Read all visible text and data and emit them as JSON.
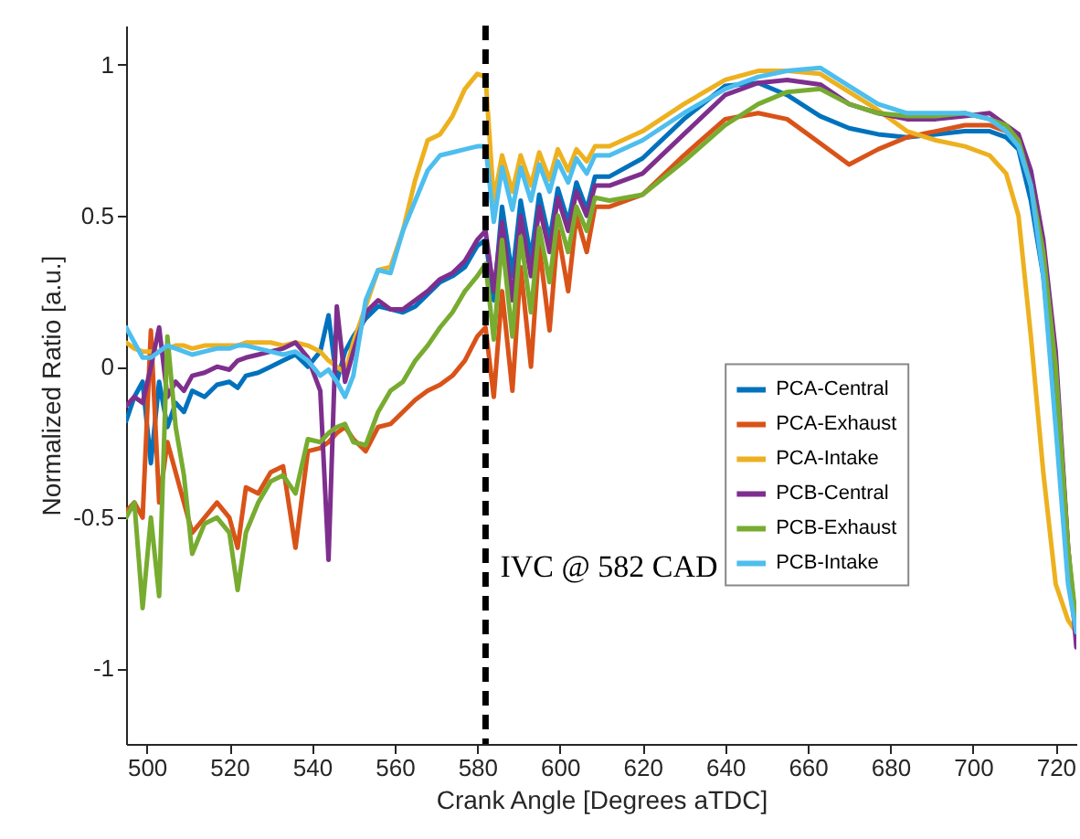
{
  "chart_data": {
    "type": "line",
    "xlabel": "Crank Angle [Degrees aTDC]",
    "ylabel": "Normalized Ratio [a.u.]",
    "xlim": [
      495,
      725
    ],
    "ylim": [
      -1.25,
      1.13
    ],
    "xticks": [
      500,
      520,
      540,
      560,
      580,
      600,
      620,
      640,
      660,
      680,
      700,
      720
    ],
    "yticks": [
      -1,
      -0.5,
      0,
      0.5,
      1
    ],
    "grid": false,
    "legend": "right",
    "line_style": "solid",
    "marker": "none",
    "ref_lines": [
      {
        "axis": "x",
        "value": 582,
        "label": "IVC @ 582 CAD",
        "color": "#000000",
        "line_style": "dashed"
      }
    ],
    "x": [
      495,
      497,
      499,
      501,
      503,
      505,
      507,
      509,
      511,
      514,
      517,
      520,
      522,
      524,
      527,
      530,
      533,
      536,
      539,
      542,
      544,
      546,
      548,
      550,
      553,
      556,
      559,
      562,
      565,
      568,
      571,
      574,
      577,
      580,
      582,
      584,
      586,
      588.5,
      590.5,
      593,
      595,
      597.5,
      599.5,
      602,
      604,
      606.5,
      608.5,
      612,
      620,
      630,
      640,
      648,
      655,
      663,
      670,
      677,
      684,
      691,
      698,
      704,
      708,
      711,
      714,
      717,
      720,
      723,
      725
    ],
    "series": [
      {
        "name": "PCA-Central",
        "color": "#0072bd",
        "values": [
          -0.18,
          -0.1,
          -0.05,
          -0.32,
          -0.05,
          -0.2,
          -0.12,
          -0.15,
          -0.08,
          -0.1,
          -0.06,
          -0.05,
          -0.07,
          -0.03,
          -0.02,
          0.0,
          0.02,
          0.04,
          0.0,
          0.05,
          0.17,
          -0.05,
          0.05,
          0.1,
          0.16,
          0.2,
          0.19,
          0.18,
          0.2,
          0.24,
          0.28,
          0.3,
          0.33,
          0.4,
          0.42,
          0.22,
          0.53,
          0.3,
          0.55,
          0.36,
          0.57,
          0.42,
          0.59,
          0.48,
          0.61,
          0.52,
          0.63,
          0.63,
          0.69,
          0.82,
          0.93,
          0.94,
          0.9,
          0.83,
          0.79,
          0.77,
          0.76,
          0.77,
          0.78,
          0.78,
          0.76,
          0.72,
          0.55,
          0.3,
          -0.1,
          -0.7,
          -0.88
        ]
      },
      {
        "name": "PCA-Exhaust",
        "color": "#d95319",
        "values": [
          -0.48,
          -0.45,
          -0.5,
          0.12,
          -0.45,
          -0.25,
          -0.35,
          -0.45,
          -0.55,
          -0.5,
          -0.45,
          -0.5,
          -0.6,
          -0.4,
          -0.42,
          -0.35,
          -0.33,
          -0.6,
          -0.28,
          -0.27,
          -0.25,
          -0.22,
          -0.2,
          -0.24,
          -0.28,
          -0.2,
          -0.19,
          -0.15,
          -0.11,
          -0.08,
          -0.06,
          -0.03,
          0.02,
          0.1,
          0.13,
          -0.1,
          0.25,
          -0.08,
          0.33,
          0.0,
          0.4,
          0.12,
          0.45,
          0.25,
          0.5,
          0.38,
          0.53,
          0.53,
          0.57,
          0.7,
          0.82,
          0.84,
          0.82,
          0.74,
          0.67,
          0.72,
          0.76,
          0.78,
          0.8,
          0.8,
          0.78,
          0.74,
          0.6,
          0.35,
          0.0,
          -0.6,
          -0.88
        ]
      },
      {
        "name": "PCA-Intake",
        "color": "#edb120",
        "values": [
          0.08,
          0.06,
          0.05,
          0.05,
          0.05,
          0.06,
          0.07,
          0.07,
          0.06,
          0.07,
          0.07,
          0.07,
          0.07,
          0.08,
          0.08,
          0.08,
          0.07,
          0.08,
          0.07,
          0.05,
          0.02,
          0.0,
          -0.02,
          0.08,
          0.2,
          0.32,
          0.33,
          0.45,
          0.62,
          0.75,
          0.77,
          0.83,
          0.92,
          0.97,
          0.96,
          0.55,
          0.7,
          0.58,
          0.7,
          0.6,
          0.71,
          0.62,
          0.72,
          0.65,
          0.72,
          0.68,
          0.73,
          0.73,
          0.78,
          0.87,
          0.95,
          0.98,
          0.98,
          0.97,
          0.91,
          0.85,
          0.78,
          0.75,
          0.73,
          0.7,
          0.64,
          0.5,
          0.1,
          -0.35,
          -0.72,
          -0.84,
          -0.88
        ]
      },
      {
        "name": "PCB-Central",
        "color": "#7e2f8e",
        "values": [
          -0.13,
          -0.1,
          -0.12,
          0.0,
          0.13,
          -0.1,
          -0.05,
          -0.08,
          -0.03,
          -0.02,
          0.0,
          -0.01,
          0.02,
          0.03,
          0.04,
          0.05,
          0.06,
          0.08,
          0.03,
          -0.08,
          -0.64,
          0.2,
          -0.05,
          0.05,
          0.18,
          0.22,
          0.19,
          0.19,
          0.22,
          0.25,
          0.29,
          0.31,
          0.35,
          0.42,
          0.45,
          0.25,
          0.48,
          0.22,
          0.5,
          0.3,
          0.53,
          0.38,
          0.56,
          0.45,
          0.58,
          0.5,
          0.6,
          0.6,
          0.64,
          0.77,
          0.9,
          0.94,
          0.95,
          0.935,
          0.87,
          0.84,
          0.82,
          0.82,
          0.83,
          0.84,
          0.8,
          0.77,
          0.65,
          0.42,
          0.05,
          -0.6,
          -0.93
        ]
      },
      {
        "name": "PCB-Exhaust",
        "color": "#77ac30",
        "values": [
          -0.5,
          -0.45,
          -0.8,
          -0.5,
          -0.76,
          0.1,
          -0.2,
          -0.36,
          -0.62,
          -0.52,
          -0.5,
          -0.55,
          -0.74,
          -0.55,
          -0.45,
          -0.38,
          -0.36,
          -0.42,
          -0.24,
          -0.25,
          -0.22,
          -0.2,
          -0.19,
          -0.25,
          -0.26,
          -0.15,
          -0.08,
          -0.05,
          0.02,
          0.07,
          0.13,
          0.18,
          0.25,
          0.3,
          0.34,
          0.09,
          0.42,
          0.1,
          0.43,
          0.18,
          0.46,
          0.28,
          0.5,
          0.38,
          0.53,
          0.45,
          0.56,
          0.55,
          0.57,
          0.68,
          0.8,
          0.87,
          0.91,
          0.92,
          0.87,
          0.84,
          0.83,
          0.83,
          0.84,
          0.82,
          0.8,
          0.75,
          0.6,
          0.38,
          0.0,
          -0.6,
          -0.85
        ]
      },
      {
        "name": "PCB-Intake",
        "color": "#4dbeee",
        "values": [
          0.13,
          0.08,
          0.03,
          0.03,
          0.05,
          0.07,
          0.06,
          0.05,
          0.04,
          0.05,
          0.06,
          0.06,
          0.07,
          0.07,
          0.06,
          0.05,
          0.04,
          0.05,
          0.02,
          -0.03,
          -0.01,
          -0.05,
          -0.1,
          -0.03,
          0.22,
          0.32,
          0.31,
          0.45,
          0.55,
          0.65,
          0.7,
          0.71,
          0.72,
          0.73,
          0.73,
          0.48,
          0.66,
          0.52,
          0.66,
          0.55,
          0.67,
          0.58,
          0.68,
          0.61,
          0.69,
          0.64,
          0.7,
          0.7,
          0.75,
          0.84,
          0.92,
          0.96,
          0.98,
          0.99,
          0.93,
          0.87,
          0.84,
          0.84,
          0.84,
          0.82,
          0.78,
          0.73,
          0.6,
          0.3,
          -0.2,
          -0.72,
          -0.88
        ]
      }
    ]
  }
}
